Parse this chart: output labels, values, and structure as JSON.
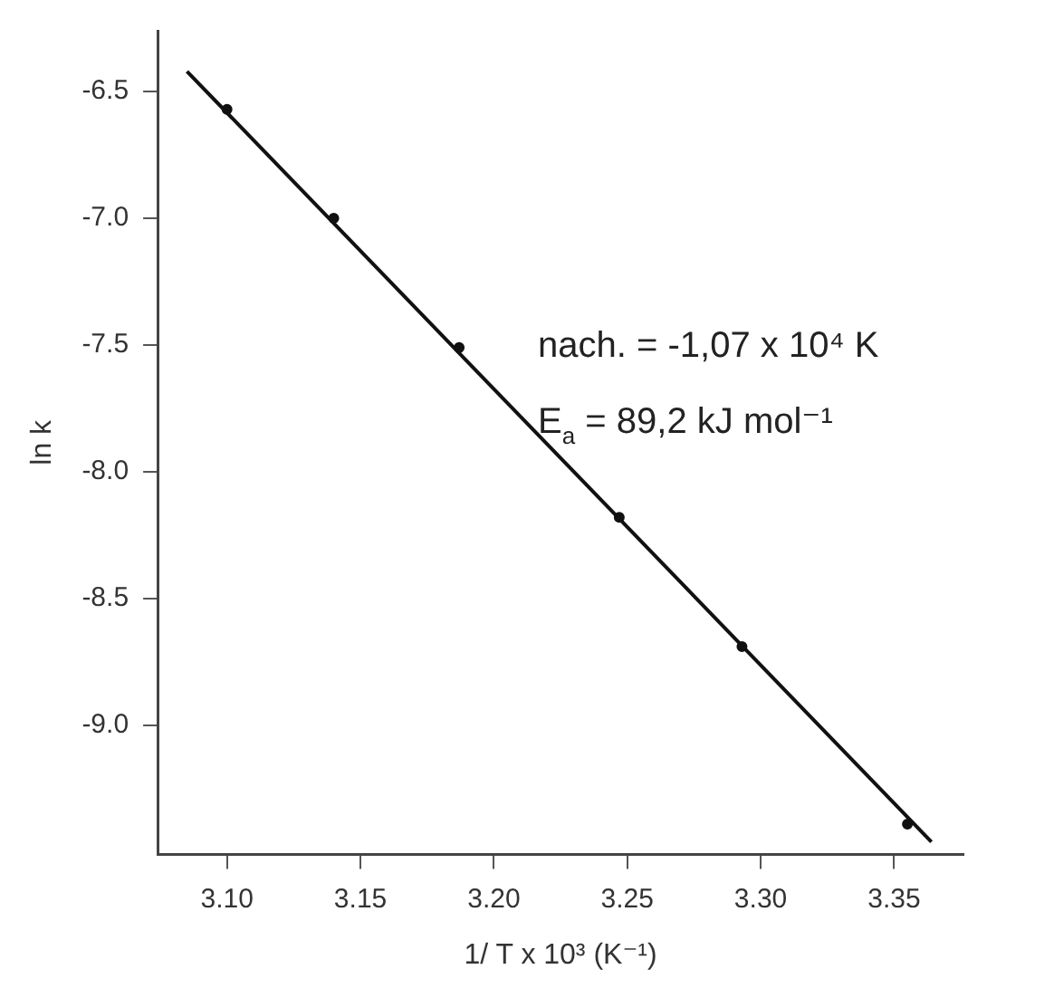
{
  "chart_data": {
    "type": "scatter",
    "xlabel": "1/ T x 10³ (K⁻¹)",
    "ylabel": "ln k",
    "annotations": [
      "nach. = -1,07 x 10⁴ K",
      "E$_{a}$ = 89,2 kJ mol⁻¹"
    ],
    "xlim": [
      3.074,
      3.376
    ],
    "xticks": [
      {
        "value": 3.1,
        "label": "3.10"
      },
      3.15,
      {
        "value": 3.2,
        "label": "3.20"
      },
      3.25,
      {
        "value": 3.3,
        "label": "3.30"
      },
      3.35
    ],
    "ylim": [
      -9.51,
      -6.26
    ],
    "yticks": [
      -6.5,
      {
        "value": -7,
        "label": "-7.0"
      },
      -7.5,
      {
        "value": -8,
        "label": "-8.0"
      },
      -8.5,
      {
        "value": -9,
        "label": "-9.0"
      }
    ],
    "grid": false,
    "legend": false,
    "marker": "circle",
    "series": [
      {
        "color": "#111111",
        "x": [
          3.1,
          3.14,
          3.187,
          3.247,
          3.293,
          3.355
        ],
        "values": [
          -6.57,
          -7.0,
          -7.51,
          -8.18,
          -8.69,
          -9.39
        ]
      },
      {
        "type": "line",
        "color": "#111111",
        "marker": "none",
        "line_style": "solid",
        "x": [
          3.085,
          3.364
        ],
        "values": [
          -6.42,
          -9.46
        ]
      }
    ]
  }
}
